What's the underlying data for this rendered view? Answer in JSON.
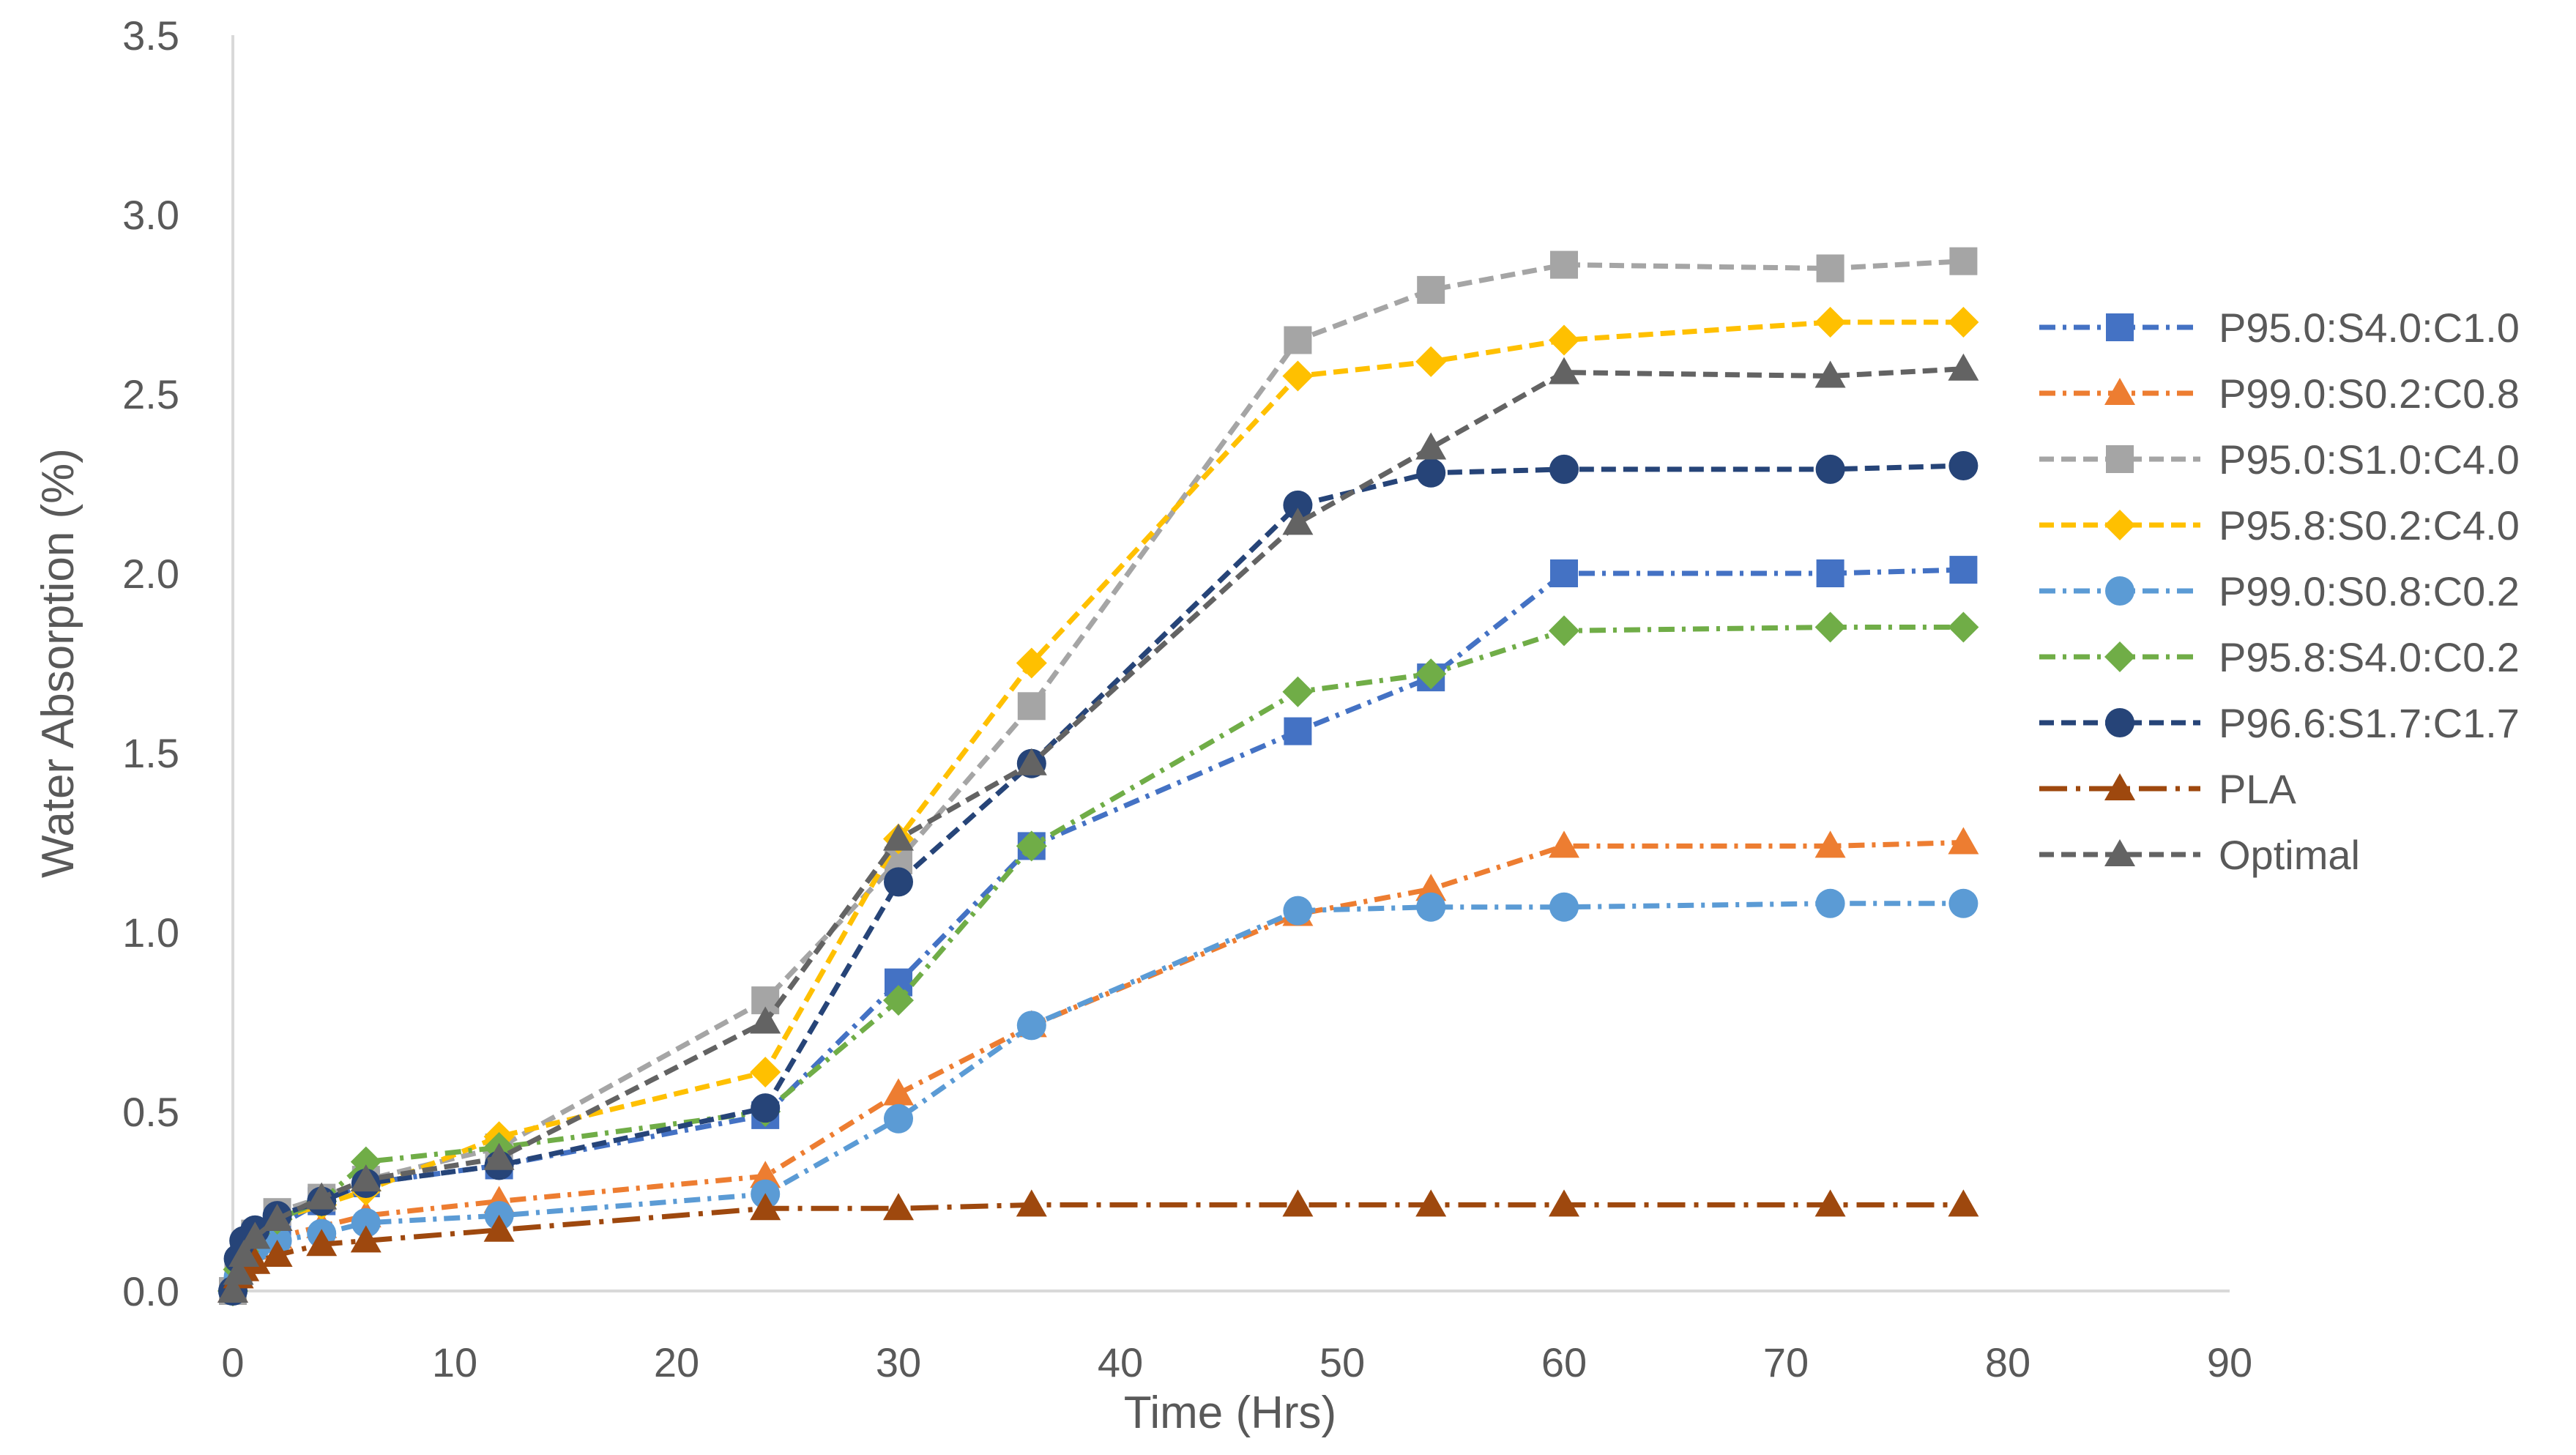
{
  "chart_data": {
    "type": "line",
    "title": "",
    "xlabel": "Time (Hrs)",
    "ylabel": "Water Absorption (%)",
    "xlim": [
      0,
      90
    ],
    "ylim": [
      0,
      3.5
    ],
    "x_ticks": [
      0,
      10,
      20,
      30,
      40,
      50,
      60,
      70,
      80,
      90
    ],
    "y_ticks": [
      0.0,
      0.5,
      1.0,
      1.5,
      2.0,
      2.5,
      3.0,
      3.5
    ],
    "x_tick_labels": [
      "0",
      "10",
      "20",
      "30",
      "40",
      "50",
      "60",
      "70",
      "80",
      "90"
    ],
    "y_tick_labels": [
      "0.0",
      "0.5",
      "1.0",
      "1.5",
      "2.0",
      "2.5",
      "3.0",
      "3.5"
    ],
    "grid": false,
    "legend_position": "right",
    "x": [
      0,
      0.25,
      0.5,
      1,
      2,
      4,
      6,
      12,
      24,
      30,
      36,
      48,
      54,
      60,
      72,
      78
    ],
    "series": [
      {
        "name": "P95.0:S4.0:C1.0",
        "color": "#4472C4",
        "marker": "square",
        "dash": "dashdot",
        "values": [
          0,
          0.05,
          0.1,
          0.15,
          0.18,
          0.25,
          0.3,
          0.35,
          0.49,
          0.86,
          1.24,
          1.56,
          1.71,
          2.0,
          2.0,
          2.01
        ]
      },
      {
        "name": "P99.0:S0.2:C0.8",
        "color": "#ED7D31",
        "marker": "triangle",
        "dash": "dashdot",
        "values": [
          0,
          0.04,
          0.08,
          0.12,
          0.15,
          0.18,
          0.21,
          0.25,
          0.32,
          0.55,
          0.74,
          1.05,
          1.12,
          1.24,
          1.24,
          1.25
        ]
      },
      {
        "name": "P95.0:S1.0:C4.0",
        "color": "#A5A5A5",
        "marker": "square",
        "dash": "dash",
        "values": [
          0,
          0.06,
          0.11,
          0.16,
          0.22,
          0.26,
          0.31,
          0.4,
          0.81,
          1.2,
          1.63,
          2.65,
          2.79,
          2.86,
          2.85,
          2.87
        ]
      },
      {
        "name": "P95.8:S0.2:C4.0",
        "color": "#FFC000",
        "marker": "diamond",
        "dash": "dash",
        "values": [
          0,
          0.06,
          0.11,
          0.16,
          0.2,
          0.24,
          0.28,
          0.43,
          0.61,
          1.26,
          1.75,
          2.55,
          2.59,
          2.65,
          2.7,
          2.7
        ]
      },
      {
        "name": "P99.0:S0.8:C0.2",
        "color": "#5B9BD5",
        "marker": "circle",
        "dash": "dashdot",
        "values": [
          0,
          0.04,
          0.08,
          0.12,
          0.14,
          0.16,
          0.19,
          0.21,
          0.27,
          0.48,
          0.74,
          1.06,
          1.07,
          1.07,
          1.08,
          1.08
        ]
      },
      {
        "name": "P95.8:S4.0:C0.2",
        "color": "#70AD47",
        "marker": "diamond",
        "dash": "dashdot",
        "values": [
          0,
          0.06,
          0.11,
          0.16,
          0.2,
          0.25,
          0.36,
          0.4,
          0.5,
          0.81,
          1.24,
          1.67,
          1.72,
          1.84,
          1.85,
          1.85
        ]
      },
      {
        "name": "P96.6:S1.7:C1.7",
        "color": "#264478",
        "marker": "circle",
        "dash": "dash",
        "values": [
          0,
          0.09,
          0.14,
          0.17,
          0.21,
          0.25,
          0.3,
          0.35,
          0.51,
          1.14,
          1.47,
          2.19,
          2.28,
          2.29,
          2.29,
          2.3
        ]
      },
      {
        "name": "PLA",
        "color": "#9E480E",
        "marker": "triangle",
        "dash": "longdashdot",
        "values": [
          0,
          0.04,
          0.06,
          0.08,
          0.1,
          0.13,
          0.14,
          0.17,
          0.23,
          0.23,
          0.24,
          0.24,
          0.24,
          0.24,
          0.24,
          0.24
        ]
      },
      {
        "name": "Optimal",
        "color": "#636363",
        "marker": "triangle",
        "dash": "dash",
        "values": [
          0,
          0.05,
          0.1,
          0.15,
          0.2,
          0.26,
          0.31,
          0.37,
          0.75,
          1.26,
          1.47,
          2.14,
          2.35,
          2.56,
          2.55,
          2.57
        ]
      }
    ]
  }
}
